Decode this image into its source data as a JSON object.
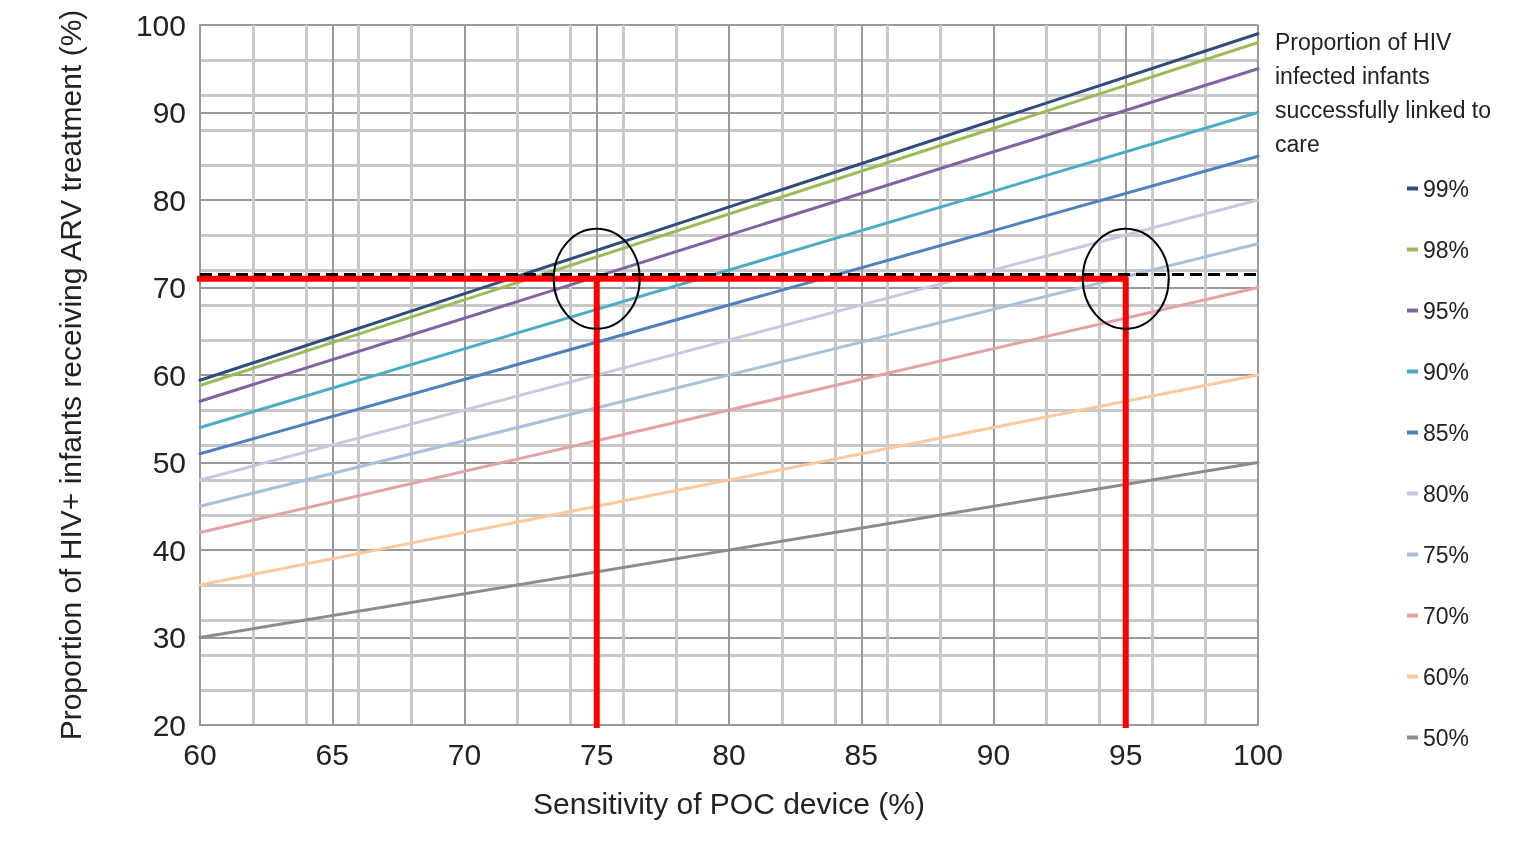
{
  "chart_data": {
    "type": "line",
    "xlabel": "Sensitivity of POC device (%)",
    "ylabel": "Proportion of HIV+ infants receiving ARV treatment (%)",
    "legend_title": "Proportion of HIV infected infants successfully linked to care",
    "x": [
      60,
      100
    ],
    "series": [
      {
        "name": "99%",
        "color": "#2e4d7b",
        "values": [
          59.4,
          99
        ]
      },
      {
        "name": "98%",
        "color": "#9bbb59",
        "values": [
          58.8,
          98
        ]
      },
      {
        "name": "95%",
        "color": "#8064a2",
        "values": [
          57,
          95
        ]
      },
      {
        "name": "90%",
        "color": "#4bacc6",
        "values": [
          54,
          90
        ]
      },
      {
        "name": "85%",
        "color": "#4f81bd",
        "values": [
          51,
          85
        ]
      },
      {
        "name": "80%",
        "color": "#cbc5e2",
        "values": [
          48,
          80
        ]
      },
      {
        "name": "75%",
        "color": "#a6c0dd",
        "values": [
          45,
          75
        ]
      },
      {
        "name": "70%",
        "color": "#e4a3a3",
        "values": [
          42,
          70
        ]
      },
      {
        "name": "60%",
        "color": "#fcc89c",
        "values": [
          36,
          60
        ]
      },
      {
        "name": "50%",
        "color": "#8c8c8c",
        "values": [
          30,
          50
        ]
      },
      {
        "color": "#ff0000",
        "x": [
          60,
          95,
          95
        ],
        "values": [
          71,
          71,
          20
        ]
      },
      {
        "color": "#ff0000",
        "x": [
          75,
          75
        ],
        "values": [
          71,
          20
        ]
      }
    ],
    "ref_lines": [
      {
        "axis": "y",
        "value": 71.5,
        "color": "#000000",
        "line_style": "dashed"
      }
    ],
    "xlim": [
      60,
      100
    ],
    "xticks": [
      60,
      65,
      70,
      75,
      80,
      85,
      90,
      95,
      100
    ],
    "ylim": [
      20,
      100
    ],
    "yticks": [
      20,
      30,
      40,
      50,
      60,
      70,
      80,
      90,
      100
    ],
    "grid": true,
    "legend": "right",
    "marker": "none",
    "line_style": "solid"
  }
}
